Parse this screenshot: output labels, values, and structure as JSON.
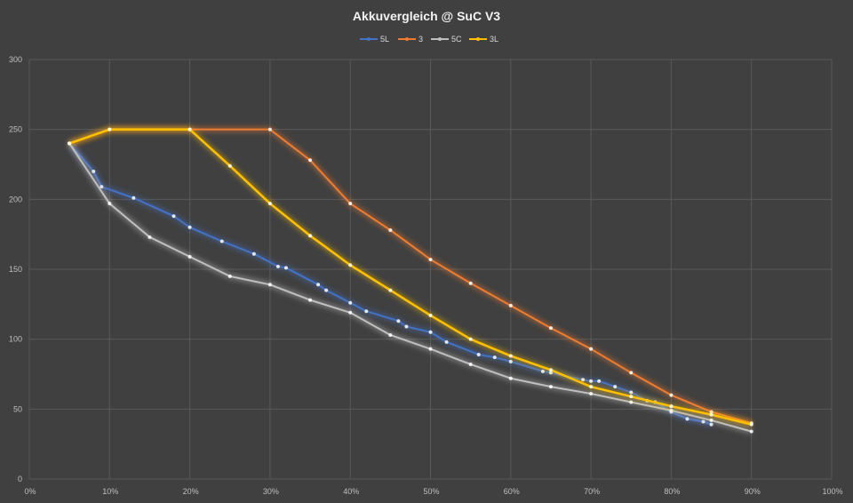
{
  "chart_data": {
    "type": "line",
    "title": "Akkuvergleich @ SuC V3",
    "xlabel": "",
    "ylabel": "",
    "xlim": [
      0,
      100
    ],
    "ylim": [
      0,
      300
    ],
    "x_ticks": [
      "0%",
      "10%",
      "20%",
      "30%",
      "40%",
      "50%",
      "60%",
      "70%",
      "80%",
      "90%",
      "100%"
    ],
    "y_ticks": [
      "0",
      "50",
      "100",
      "150",
      "200",
      "250",
      "300"
    ],
    "grid": true,
    "legend_position": "top-center",
    "series": [
      {
        "name": "5L",
        "color": "#4472c4",
        "points": [
          [
            5,
            240
          ],
          [
            8,
            220
          ],
          [
            9,
            209
          ],
          [
            13,
            201
          ],
          [
            18,
            188
          ],
          [
            20,
            180
          ],
          [
            24,
            170
          ],
          [
            28,
            161
          ],
          [
            31,
            152
          ],
          [
            32,
            151
          ],
          [
            36,
            139
          ],
          [
            37,
            135
          ],
          [
            40,
            126
          ],
          [
            42,
            120
          ],
          [
            46,
            113
          ],
          [
            47,
            109
          ],
          [
            50,
            105
          ],
          [
            52,
            98
          ],
          [
            56,
            89
          ],
          [
            58,
            87
          ],
          [
            60,
            84
          ],
          [
            64,
            77
          ],
          [
            65,
            76
          ],
          [
            69,
            71
          ],
          [
            70,
            70
          ],
          [
            71,
            70
          ],
          [
            73,
            66
          ],
          [
            75,
            62
          ],
          [
            77,
            56
          ],
          [
            78,
            55
          ],
          [
            80,
            48
          ],
          [
            82,
            43
          ],
          [
            84,
            41
          ],
          [
            85,
            39
          ]
        ]
      },
      {
        "name": "3",
        "color": "#ed7d31",
        "points": [
          [
            5,
            240
          ],
          [
            10,
            250
          ],
          [
            20,
            250
          ],
          [
            30,
            250
          ],
          [
            35,
            228
          ],
          [
            40,
            197
          ],
          [
            45,
            178
          ],
          [
            50,
            157
          ],
          [
            55,
            140
          ],
          [
            60,
            124
          ],
          [
            65,
            108
          ],
          [
            70,
            93
          ],
          [
            75,
            76
          ],
          [
            80,
            60
          ],
          [
            85,
            48
          ],
          [
            90,
            40
          ]
        ]
      },
      {
        "name": "5C",
        "color": "#bfbfbf",
        "points": [
          [
            5,
            240
          ],
          [
            10,
            197
          ],
          [
            15,
            173
          ],
          [
            20,
            159
          ],
          [
            25,
            145
          ],
          [
            30,
            139
          ],
          [
            35,
            128
          ],
          [
            40,
            119
          ],
          [
            45,
            103
          ],
          [
            50,
            93
          ],
          [
            55,
            82
          ],
          [
            60,
            72
          ],
          [
            65,
            66
          ],
          [
            70,
            61
          ],
          [
            75,
            55
          ],
          [
            80,
            49
          ],
          [
            85,
            42
          ],
          [
            90,
            34
          ]
        ]
      },
      {
        "name": "3L",
        "color": "#ffc000",
        "points": [
          [
            5,
            240
          ],
          [
            10,
            250
          ],
          [
            20,
            250
          ],
          [
            25,
            224
          ],
          [
            30,
            197
          ],
          [
            35,
            174
          ],
          [
            40,
            153
          ],
          [
            45,
            135
          ],
          [
            50,
            117
          ],
          [
            55,
            100
          ],
          [
            60,
            88
          ],
          [
            65,
            78
          ],
          [
            70,
            66
          ],
          [
            75,
            59
          ],
          [
            80,
            52
          ],
          [
            85,
            46
          ],
          [
            90,
            39
          ]
        ]
      }
    ]
  }
}
